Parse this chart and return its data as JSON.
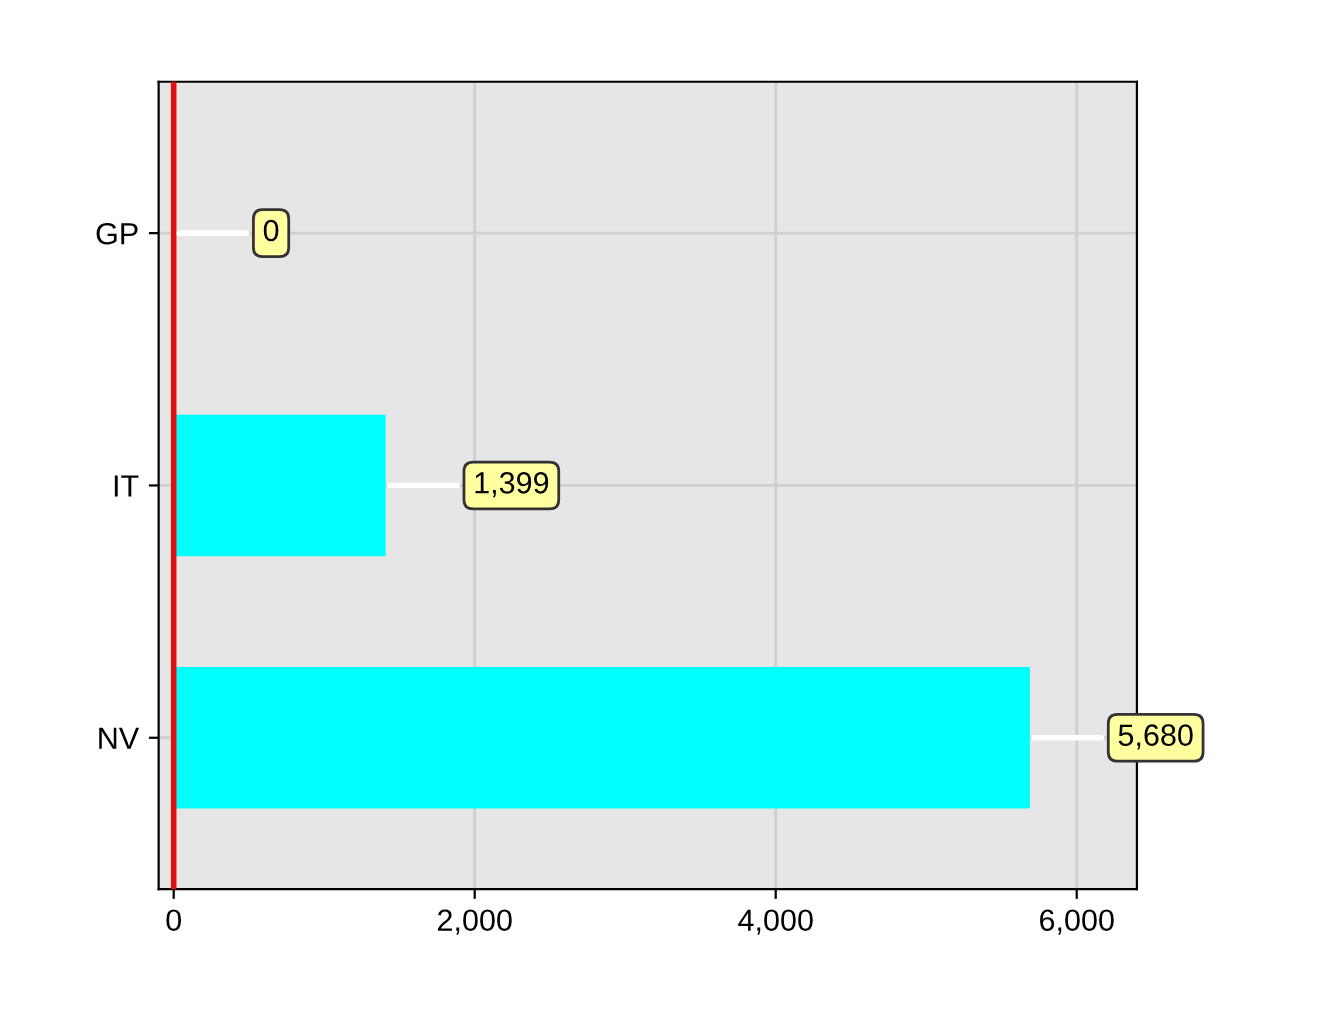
{
  "chart_data": {
    "type": "bar",
    "orientation": "horizontal",
    "categories": [
      "GP",
      "IT",
      "NV"
    ],
    "values": [
      0,
      1399,
      5680
    ],
    "colors": [
      "#22dd22",
      "#00ffff",
      "#00ffff"
    ],
    "value_labels": [
      "0",
      "1,399",
      "5,680"
    ],
    "xlim": [
      -100,
      6400
    ],
    "xticks": [
      0,
      {
        "value": 2000,
        "label": "2,000"
      },
      {
        "value": 4000,
        "label": "4,000"
      },
      {
        "value": 6000,
        "label": "6,000"
      }
    ],
    "ref_lines": [
      {
        "axis": "x",
        "value": 0,
        "color": "#dd1111"
      }
    ],
    "grid": true
  }
}
